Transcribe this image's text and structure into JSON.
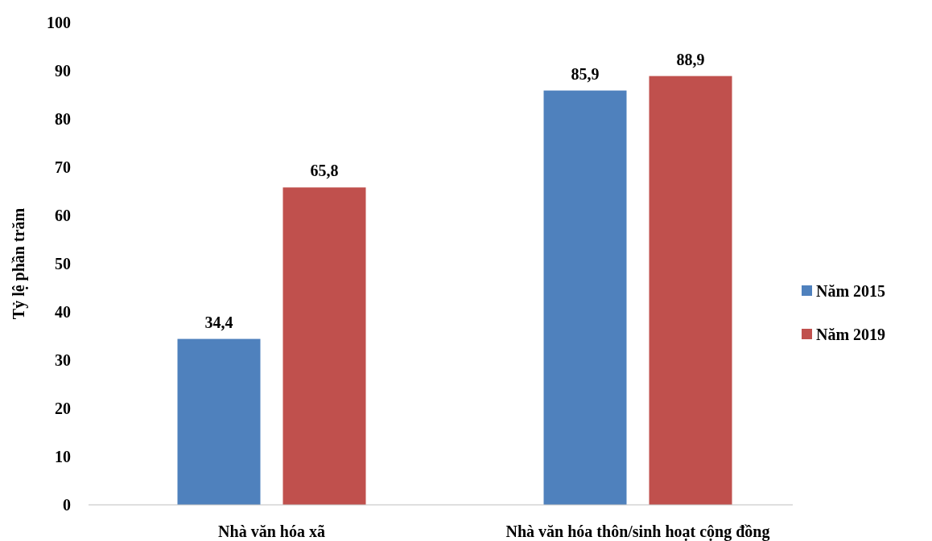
{
  "chart_data": {
    "type": "bar",
    "ylabel": "Tỷ lệ phần trăm",
    "categories": [
      "Nhà văn hóa xã",
      "Nhà văn hóa thôn/sinh hoạt cộng đồng"
    ],
    "series": [
      {
        "name": "Năm 2015",
        "color": "#4f81bd",
        "values": [
          34.4,
          85.9
        ],
        "value_labels": [
          "34,4",
          "85,9"
        ]
      },
      {
        "name": "Năm 2019",
        "color": "#c0504d",
        "values": [
          65.8,
          88.9
        ],
        "value_labels": [
          "65,8",
          "88,9"
        ]
      }
    ],
    "ylim": [
      0,
      100
    ],
    "yticks": [
      0,
      10,
      20,
      30,
      40,
      50,
      60,
      70,
      80,
      90,
      100
    ],
    "grid": false,
    "legend": "right"
  }
}
